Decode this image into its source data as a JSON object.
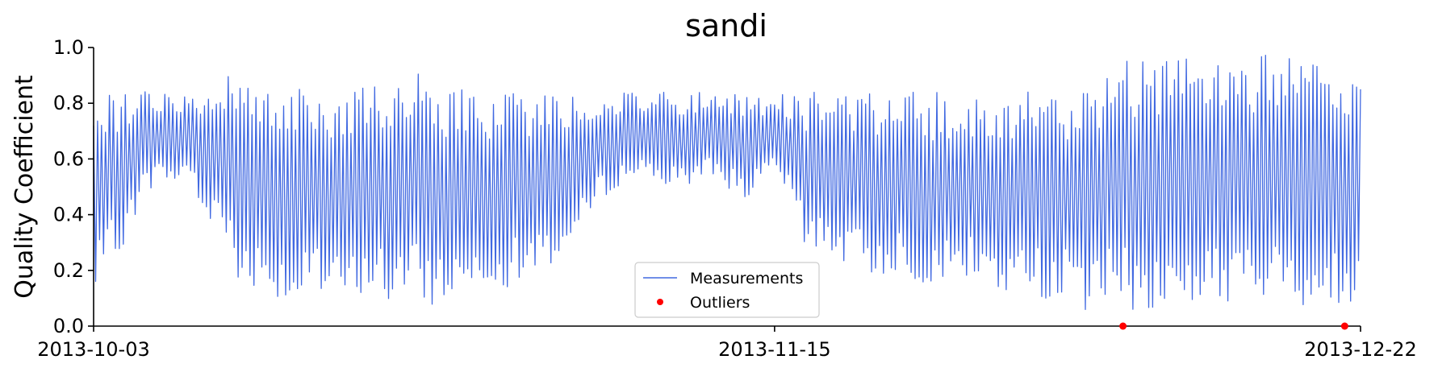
{
  "chart_data": {
    "type": "line",
    "title": "sandi",
    "xlabel": "",
    "ylabel": "Quality Coefficient",
    "xlim": [
      "2013-10-03",
      "2013-12-22"
    ],
    "ylim": [
      0.0,
      1.0
    ],
    "x_ticks": [
      "2013-10-03",
      "2013-11-15",
      "2013-12-22"
    ],
    "y_ticks": [
      "0.0",
      "0.2",
      "0.4",
      "0.6",
      "0.8",
      "1.0"
    ],
    "grid": false,
    "legend": "bottom-center",
    "series": [
      {
        "name": "Measurements",
        "kind": "line",
        "color": "#4169e1",
        "x": [
          "2013-10-03",
          "2013-10-04",
          "2013-10-05",
          "2013-10-06",
          "2013-10-07",
          "2013-10-08",
          "2013-10-09",
          "2013-10-10",
          "2013-10-11",
          "2013-10-12",
          "2013-10-13",
          "2013-10-14",
          "2013-10-15",
          "2013-10-16",
          "2013-10-17",
          "2013-10-18",
          "2013-10-19",
          "2013-10-20",
          "2013-10-21",
          "2013-10-22",
          "2013-10-23",
          "2013-10-24",
          "2013-10-25",
          "2013-10-26",
          "2013-10-27",
          "2013-10-28",
          "2013-10-29",
          "2013-10-30",
          "2013-10-31",
          "2013-11-01",
          "2013-11-02",
          "2013-11-03",
          "2013-11-04",
          "2013-11-05",
          "2013-11-06",
          "2013-11-07",
          "2013-11-08",
          "2013-11-09",
          "2013-11-10",
          "2013-11-11",
          "2013-11-12",
          "2013-11-13",
          "2013-11-14",
          "2013-11-15",
          "2013-11-16",
          "2013-11-17",
          "2013-11-18",
          "2013-11-19",
          "2013-11-20",
          "2013-11-21",
          "2013-11-22",
          "2013-11-23",
          "2013-11-24",
          "2013-11-25",
          "2013-11-26",
          "2013-11-27",
          "2013-11-28",
          "2013-11-29",
          "2013-11-30",
          "2013-12-01",
          "2013-12-02",
          "2013-12-03",
          "2013-12-04",
          "2013-12-05",
          "2013-12-06",
          "2013-12-07",
          "2013-12-08",
          "2013-12-09",
          "2013-12-10",
          "2013-12-11",
          "2013-12-12",
          "2013-12-13",
          "2013-12-14",
          "2013-12-15",
          "2013-12-16",
          "2013-12-17",
          "2013-12-18",
          "2013-12-19",
          "2013-12-20",
          "2013-12-21",
          "2013-12-22"
        ],
        "max": [
          0.83,
          0.84,
          0.84,
          0.85,
          0.84,
          0.83,
          0.84,
          0.84,
          0.85,
          0.98,
          0.87,
          0.88,
          0.88,
          0.85,
          0.84,
          0.86,
          0.87,
          0.88,
          0.9,
          0.88,
          0.86,
          0.98,
          0.85,
          0.85,
          0.85,
          0.84,
          0.84,
          0.85,
          0.84,
          0.84,
          0.84,
          0.84,
          0.85,
          0.84,
          0.84,
          0.84,
          0.84,
          0.84,
          0.84,
          0.84,
          0.84,
          0.84,
          0.84,
          0.84,
          0.84,
          0.84,
          0.85,
          0.84,
          0.84,
          0.85,
          0.84,
          0.84,
          0.84,
          0.84,
          0.84,
          0.84,
          0.84,
          0.84,
          0.84,
          0.84,
          0.84,
          0.84,
          0.84,
          0.84,
          0.96,
          0.96,
          0.96,
          0.98,
          0.96,
          0.96,
          0.96,
          0.96,
          0.96,
          0.98,
          0.98,
          0.96,
          0.96,
          0.96,
          0.96,
          0.96,
          0.85
        ],
        "min": [
          0.09,
          0.22,
          0.3,
          0.45,
          0.52,
          0.5,
          0.55,
          0.35,
          0.42,
          0.12,
          0.15,
          0.12,
          0.08,
          0.06,
          0.1,
          0.08,
          0.05,
          0.12,
          0.1,
          0.06,
          0.12,
          0.06,
          0.08,
          0.1,
          0.14,
          0.16,
          0.14,
          0.15,
          0.2,
          0.22,
          0.25,
          0.35,
          0.45,
          0.5,
          0.52,
          0.55,
          0.5,
          0.48,
          0.52,
          0.55,
          0.5,
          0.45,
          0.48,
          0.55,
          0.45,
          0.25,
          0.3,
          0.22,
          0.2,
          0.18,
          0.18,
          0.2,
          0.16,
          0.14,
          0.15,
          0.16,
          0.14,
          0.12,
          0.1,
          0.12,
          0.1,
          0.09,
          0.1,
          0.02,
          0.08,
          0.06,
          0.05,
          0.03,
          0.06,
          0.05,
          0.08,
          0.07,
          0.1,
          0.06,
          0.08,
          0.08,
          0.06,
          0.08,
          0.05,
          0.03,
          0.17
        ]
      },
      {
        "name": "Outliers",
        "kind": "points",
        "color": "#ff0000",
        "x": [
          "2013-12-07",
          "2013-12-21"
        ],
        "y": [
          0.0,
          0.0
        ]
      }
    ]
  }
}
